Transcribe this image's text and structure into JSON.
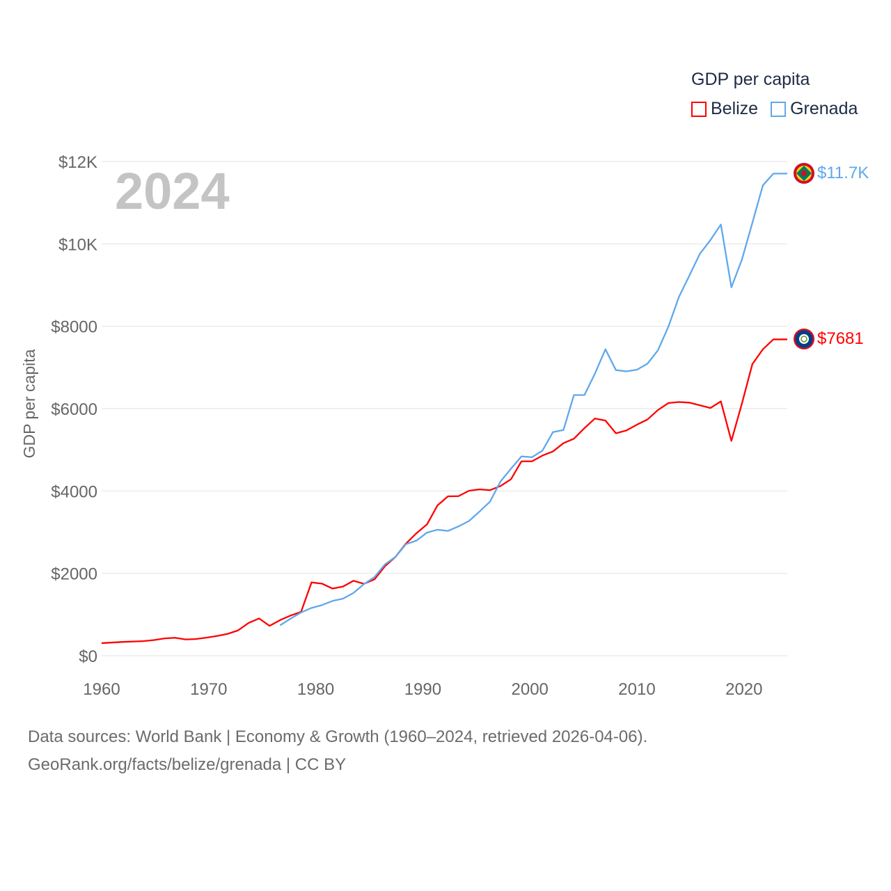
{
  "legend": {
    "title": "GDP per capita",
    "items": [
      {
        "label": "Belize",
        "color": "#ff0000"
      },
      {
        "label": "Grenada",
        "color": "#5ea8ec"
      }
    ]
  },
  "year_label": "2024",
  "end_labels": {
    "belize": "$7681",
    "grenada": "$11.7K"
  },
  "footer": {
    "line1": "Data sources: World Bank | Economy & Growth (1960–2024, retrieved 2026-04-06).",
    "line2": "GeoRank.org/facts/belize/grenada | CC BY"
  },
  "chart_data": {
    "type": "line",
    "title": "GDP per capita",
    "xlabel": "",
    "ylabel": "GDP per capita",
    "xlim": [
      1960,
      2024
    ],
    "ylim": [
      0,
      12000
    ],
    "x_ticks": [
      1960,
      1970,
      1980,
      1990,
      2000,
      2010,
      2020
    ],
    "y_ticks": [
      0,
      2000,
      4000,
      6000,
      8000,
      10000,
      12000
    ],
    "y_tick_labels": [
      "$0",
      "$2000",
      "$4000",
      "$6000",
      "$8000",
      "$10K",
      "$12K"
    ],
    "grid": true,
    "legend_position": "top-right",
    "series": [
      {
        "name": "Belize",
        "color": "#ff0000",
        "start_year": 1960,
        "values": [
          305,
          320,
          335,
          345,
          355,
          380,
          420,
          435,
          395,
          405,
          440,
          480,
          530,
          615,
          795,
          905,
          725,
          865,
          975,
          1065,
          1780,
          1750,
          1630,
          1680,
          1820,
          1745,
          1855,
          2175,
          2400,
          2725,
          2975,
          3190,
          3650,
          3870,
          3875,
          4005,
          4040,
          4020,
          4120,
          4285,
          4720,
          4720,
          4860,
          4960,
          5160,
          5270,
          5525,
          5760,
          5710,
          5400,
          5470,
          5610,
          5735,
          5965,
          6135,
          6160,
          6145,
          6080,
          6015,
          6175,
          5215,
          6120,
          7080,
          7440,
          7681
        ]
      },
      {
        "name": "Grenada",
        "color": "#5ea8ec",
        "start_year": 1977,
        "values": [
          740,
          900,
          1050,
          1160,
          1230,
          1330,
          1385,
          1525,
          1740,
          1910,
          2220,
          2400,
          2710,
          2795,
          2990,
          3060,
          3030,
          3140,
          3270,
          3500,
          3740,
          4230,
          4540,
          4840,
          4820,
          4980,
          5430,
          5480,
          6330,
          6330,
          6850,
          7440,
          6935,
          6905,
          6945,
          7090,
          7415,
          7990,
          8710,
          9230,
          9760,
          10090,
          10470,
          8945,
          9615,
          10510,
          11420,
          11706
        ]
      }
    ]
  }
}
